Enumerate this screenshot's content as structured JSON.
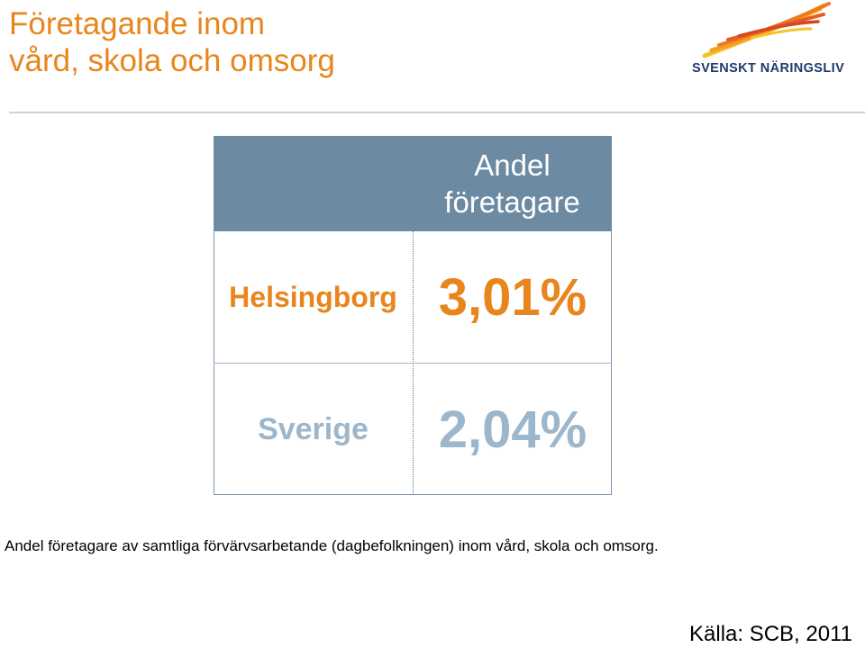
{
  "header": {
    "title_line1": "Företagande inom",
    "title_line2": "vård, skola och omsorg",
    "logo_text": "SVENSKT NÄRINGSLIV"
  },
  "table": {
    "column_header": "Andel företagare",
    "rows": [
      {
        "label": "Helsingborg",
        "value": "3,01%"
      },
      {
        "label": "Sverige",
        "value": "2,04%"
      }
    ]
  },
  "caption": "Andel företagare av samtliga förvärvsarbetande (dagbefolkningen) inom vård, skola och omsorg.",
  "source": "Källa: SCB, 2011",
  "colors": {
    "accent_orange": "#E8851C",
    "header_blue": "#6C8AA2",
    "muted_blue": "#9CB6CB",
    "logo_navy": "#1F3A6E"
  },
  "icons": {
    "logo": "svenskt-naringsliv-flame-logo"
  }
}
